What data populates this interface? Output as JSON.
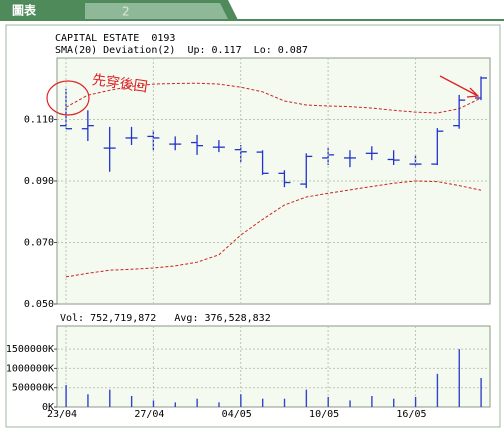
{
  "header": {
    "tabs": [
      "圖表",
      "2"
    ]
  },
  "chart_data": [
    {
      "type": "ohlc",
      "title": "CAPITAL ESTATE  0193",
      "subtitle": "SMA(20) Deviation(2)  Up: 0.117  Lo: 0.087",
      "annotation": "先穿後回",
      "open": [
        0.108,
        0.107,
        0.1007,
        0.104,
        0.1045,
        0.102,
        0.1025,
        0.101,
        0.1002,
        0.0994,
        0.0925,
        0.089,
        0.0975,
        0.0975,
        0.099,
        0.097,
        0.0955,
        0.0955,
        0.108,
        0.117
      ],
      "high": [
        0.12,
        0.113,
        0.1076,
        0.1076,
        0.1066,
        0.1045,
        0.105,
        0.1033,
        0.1017,
        0.1,
        0.0935,
        0.099,
        0.1007,
        0.1,
        0.1013,
        0.1,
        0.0984,
        0.1072,
        0.118,
        0.124
      ],
      "low": [
        0.107,
        0.103,
        0.093,
        0.1017,
        0.1,
        0.1,
        0.0985,
        0.0994,
        0.0962,
        0.092,
        0.088,
        0.0877,
        0.0952,
        0.0945,
        0.0968,
        0.0952,
        0.095,
        0.0952,
        0.107,
        0.1163
      ],
      "close": [
        0.107,
        0.108,
        0.1007,
        0.104,
        0.104,
        0.102,
        0.1015,
        0.101,
        0.0995,
        0.0925,
        0.0895,
        0.098,
        0.0985,
        0.0975,
        0.099,
        0.0968,
        0.0955,
        0.1062,
        0.1163,
        0.1235
      ],
      "color": "#2233cc",
      "bands": {
        "color": "#cc2222",
        "upper": [
          0.114,
          0.1179,
          0.1195,
          0.1208,
          0.1215,
          0.1217,
          0.1218,
          0.1215,
          0.1205,
          0.119,
          0.116,
          0.1147,
          0.1144,
          0.1142,
          0.1137,
          0.113,
          0.1124,
          0.1121,
          0.1135,
          0.117
        ],
        "lower": [
          0.0588,
          0.06,
          0.061,
          0.0613,
          0.0617,
          0.0624,
          0.0636,
          0.066,
          0.0724,
          0.0775,
          0.0822,
          0.0848,
          0.086,
          0.0871,
          0.0882,
          0.0893,
          0.09,
          0.0898,
          0.0885,
          0.087
        ]
      },
      "ylim": [
        0.05,
        0.13
      ],
      "yticks": [
        {
          "value": 0.05,
          "label": "0.050"
        },
        {
          "value": 0.07,
          "label": "0.070"
        },
        {
          "value": 0.09,
          "label": "0.090"
        },
        {
          "value": 0.11,
          "label": "0.110"
        }
      ],
      "grid": true
    },
    {
      "type": "bar",
      "title": "Vol: 752,719,872   Avg: 376,528,832",
      "categories": [
        "23/04",
        null,
        null,
        null,
        "27/04",
        null,
        null,
        null,
        "04/05",
        null,
        null,
        null,
        "10/05",
        null,
        null,
        null,
        "16/05",
        null,
        null,
        null
      ],
      "values": [
        570000000,
        330000000,
        450000000,
        285000000,
        170000000,
        120000000,
        215000000,
        120000000,
        330000000,
        215000000,
        215000000,
        450000000,
        260000000,
        170000000,
        285000000,
        215000000,
        260000000,
        860000000,
        1500000000,
        752719872
      ],
      "color": "#3344cc",
      "ylim": [
        0,
        2100000000
      ],
      "yticks": [
        {
          "value": 0,
          "label": "0K"
        },
        {
          "value": 500000000,
          "label": "500000K"
        },
        {
          "value": 1000000000,
          "label": "1000000K"
        },
        {
          "value": 1500000000,
          "label": "1500000K"
        }
      ],
      "grid": true
    }
  ]
}
